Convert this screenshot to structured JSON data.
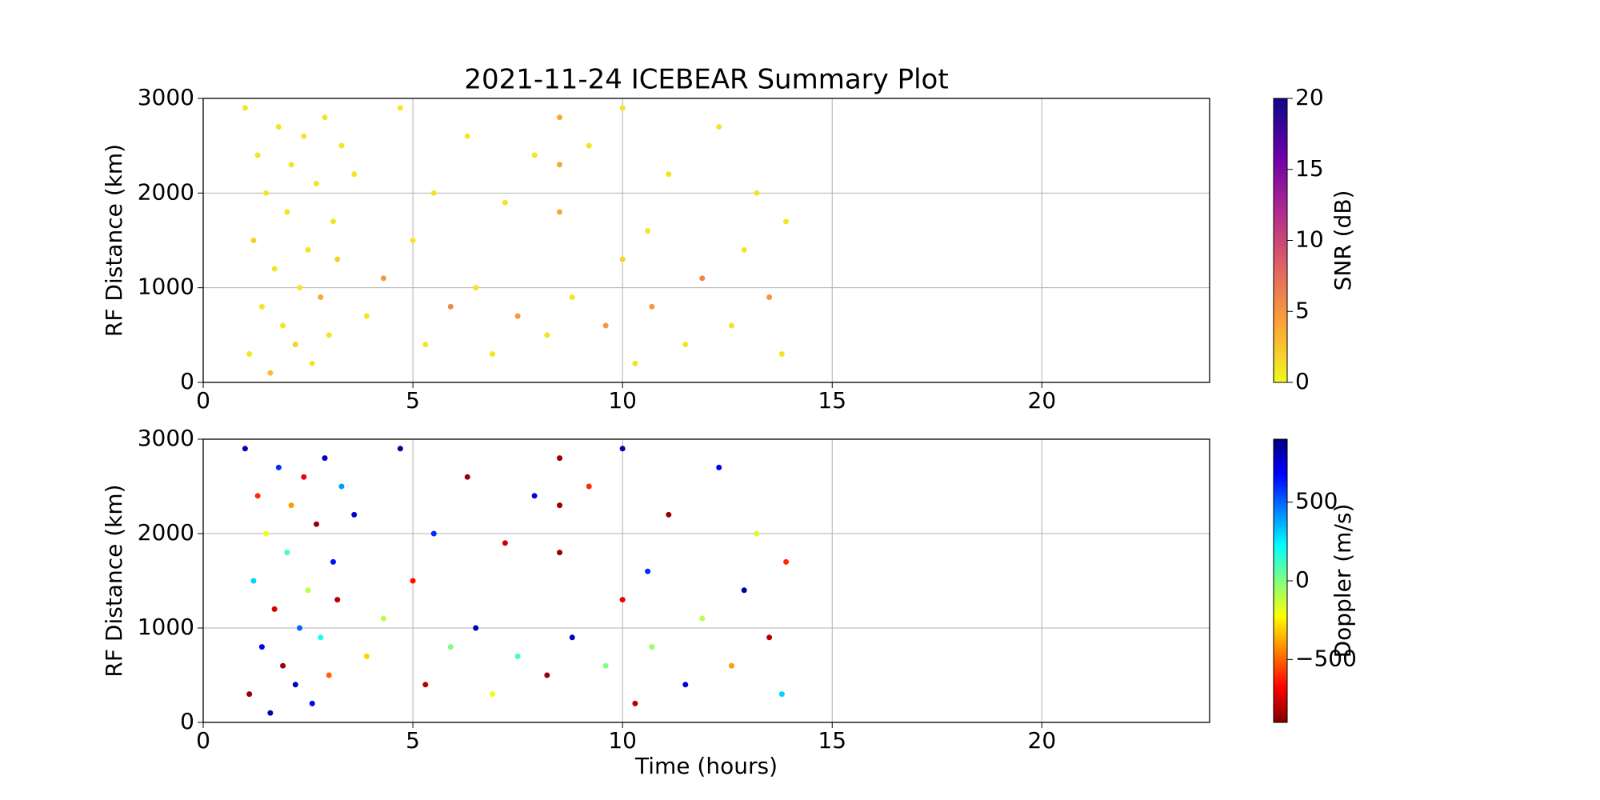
{
  "chart_data": [
    {
      "type": "scatter",
      "title": "2021-11-24 ICEBEAR Summary Plot",
      "ylabel": "RF Distance (km)",
      "x": [
        1.0,
        1.1,
        1.2,
        1.3,
        1.4,
        1.5,
        1.6,
        1.7,
        1.8,
        1.9,
        2.0,
        2.1,
        2.2,
        2.3,
        2.4,
        2.5,
        2.6,
        2.7,
        2.8,
        2.9,
        3.0,
        3.1,
        3.2,
        3.3,
        3.6,
        3.9,
        4.3,
        4.7,
        5.0,
        5.3,
        5.5,
        5.9,
        6.3,
        6.5,
        6.9,
        7.2,
        7.5,
        7.9,
        8.2,
        8.5,
        8.5,
        8.5,
        8.8,
        9.2,
        9.6,
        10.0,
        10.0,
        10.3,
        10.6,
        10.7,
        11.1,
        11.5,
        11.9,
        12.3,
        12.6,
        12.9,
        13.2,
        13.5,
        13.8,
        13.9
      ],
      "y": [
        2900,
        300,
        1500,
        2400,
        800,
        2000,
        100,
        1200,
        2700,
        600,
        1800,
        2300,
        400,
        1000,
        2600,
        1400,
        200,
        2100,
        900,
        2800,
        500,
        1700,
        1300,
        2500,
        2200,
        700,
        1100,
        2900,
        1500,
        400,
        2000,
        800,
        2600,
        1000,
        300,
        1900,
        700,
        2400,
        500,
        2800,
        2300,
        1800,
        900,
        2500,
        600,
        2900,
        1300,
        200,
        1600,
        800,
        2200,
        400,
        1100,
        2700,
        600,
        1400,
        2000,
        900,
        300,
        1700
      ],
      "c": [
        1,
        1,
        2,
        1,
        1,
        1,
        3,
        1,
        1,
        1,
        1,
        1,
        2,
        1,
        1,
        1,
        1,
        1,
        4,
        1,
        1,
        1,
        2,
        1,
        1,
        1,
        5,
        1,
        1,
        1,
        1,
        6,
        1,
        1,
        1,
        1,
        5,
        1,
        1,
        4,
        4,
        4,
        1,
        1,
        5,
        1,
        2,
        1,
        1,
        5,
        1,
        1,
        6,
        1,
        1,
        1,
        1,
        5,
        1,
        1
      ],
      "xlim": [
        0,
        24
      ],
      "xticks": [
        0,
        5,
        10,
        15,
        20
      ],
      "ylim": [
        0,
        3000
      ],
      "yticks": [
        0,
        1000,
        2000,
        3000
      ],
      "grid": true,
      "colorbar": {
        "label": "SNR (dB)",
        "colormap": "plasma_r",
        "lim": [
          0,
          20
        ],
        "ticks": [
          0,
          5,
          10,
          15,
          20
        ]
      }
    },
    {
      "type": "scatter",
      "ylabel": "RF Distance (km)",
      "xlabel": "Time (hours)",
      "x": [
        1.0,
        1.1,
        1.2,
        1.3,
        1.4,
        1.5,
        1.6,
        1.7,
        1.8,
        1.9,
        2.0,
        2.1,
        2.2,
        2.3,
        2.4,
        2.5,
        2.6,
        2.7,
        2.8,
        2.9,
        3.0,
        3.1,
        3.2,
        3.3,
        3.6,
        3.9,
        4.3,
        4.7,
        5.0,
        5.3,
        5.5,
        5.9,
        6.3,
        6.5,
        6.9,
        7.2,
        7.5,
        7.9,
        8.2,
        8.5,
        8.5,
        8.5,
        8.8,
        9.2,
        9.6,
        10.0,
        10.0,
        10.3,
        10.6,
        10.7,
        11.1,
        11.5,
        11.9,
        12.3,
        12.6,
        12.9,
        13.2,
        13.5,
        13.8,
        13.9
      ],
      "y": [
        2900,
        300,
        1500,
        2400,
        800,
        2000,
        100,
        1200,
        2700,
        600,
        1800,
        2300,
        400,
        1000,
        2600,
        1400,
        200,
        2100,
        900,
        2800,
        500,
        1700,
        1300,
        2500,
        2200,
        700,
        1100,
        2900,
        1500,
        400,
        2000,
        800,
        2600,
        1000,
        300,
        1900,
        700,
        2400,
        500,
        2800,
        2300,
        1800,
        900,
        2500,
        600,
        2900,
        1300,
        200,
        1600,
        800,
        2200,
        400,
        1100,
        2700,
        600,
        1400,
        2000,
        900,
        300,
        1700
      ],
      "c": [
        800,
        -850,
        300,
        -600,
        700,
        -200,
        850,
        -750,
        600,
        -850,
        100,
        -400,
        800,
        500,
        -700,
        -100,
        700,
        -850,
        200,
        800,
        -500,
        650,
        -800,
        400,
        750,
        -300,
        -100,
        850,
        -650,
        -800,
        600,
        0,
        -850,
        800,
        -200,
        -750,
        100,
        700,
        -850,
        -850,
        -850,
        -850,
        800,
        -600,
        0,
        850,
        -700,
        -800,
        600,
        -50,
        -850,
        750,
        -100,
        700,
        -400,
        850,
        -150,
        -800,
        300,
        -600
      ],
      "xlim": [
        0,
        24
      ],
      "xticks": [
        0,
        5,
        10,
        15,
        20
      ],
      "ylim": [
        0,
        3000
      ],
      "yticks": [
        0,
        1000,
        2000,
        3000
      ],
      "grid": true,
      "colorbar": {
        "label": "Doppler (m/s)",
        "colormap": "jet_r",
        "lim": [
          -900,
          900
        ],
        "ticks": [
          {
            "value": -500,
            "label": "−500"
          },
          0,
          500
        ]
      }
    }
  ]
}
